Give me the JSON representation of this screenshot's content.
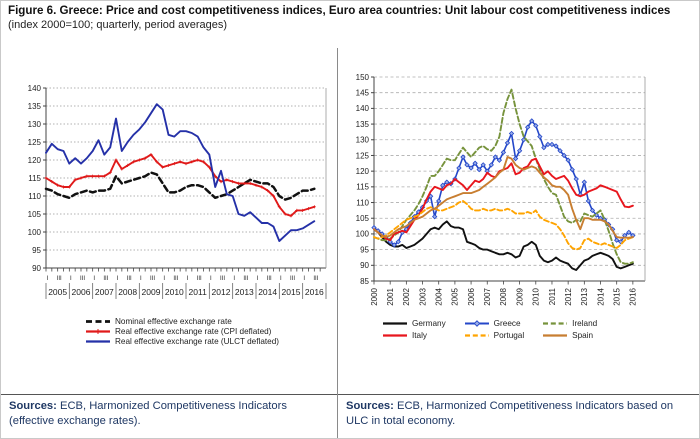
{
  "figure": {
    "title": "Figure 6. Greece: Price and cost competitiveness indices, Euro area countries: Unit labour cost competitiveness indices",
    "subtitle": "(index 2000=100; quarterly, period averages)"
  },
  "left_panel": {
    "sources_label": "Sources:",
    "sources_rest": " ECB, Harmonized Competitiveness Indicators (effective exchange rates)."
  },
  "right_panel": {
    "sources_label": "Sources:",
    "sources_rest": " ECB, Harmonized Competitiveness Indicators based on ULC in total economy."
  },
  "colors": {
    "sources_text": "#1F3864",
    "divider": "#8a8a8a",
    "axis": "#444444",
    "grid_left": "#999999",
    "grid_right": "#aeaeae"
  },
  "chart_data": [
    {
      "type": "line",
      "panel": "left",
      "x_unit": "quarter",
      "x_start": "2005Q1",
      "x_end": "2016Q3",
      "years": [
        2005,
        2006,
        2007,
        2008,
        2009,
        2010,
        2011,
        2012,
        2013,
        2014,
        2015,
        2016
      ],
      "quarter_tick_labels": [
        "I",
        "III"
      ],
      "ylim": [
        90,
        140
      ],
      "ytick_step": 5,
      "grid": "dotted",
      "legend_position": "below-left",
      "series": [
        {
          "name": "Nominal effective exchange rate",
          "color": "#111111",
          "style": "dashed-bold",
          "values": [
            112,
            111.5,
            110.5,
            110,
            109.5,
            110.5,
            111,
            111.5,
            111,
            111.5,
            111.5,
            112,
            115.5,
            113.5,
            114,
            114.5,
            115,
            115.5,
            116.5,
            116,
            113.5,
            111,
            111,
            111.5,
            112.5,
            113,
            113,
            112.5,
            111,
            109.5,
            110,
            110.5,
            111.5,
            112.5,
            113.5,
            114.5,
            114,
            113.5,
            113.5,
            112.5,
            110,
            109,
            109.5,
            110.5,
            111.5,
            111.5,
            112
          ]
        },
        {
          "name": "Real effective exchange rate (CPI deflated)",
          "color": "#E01A1A",
          "style": "solid-plus",
          "values": [
            115,
            114,
            113,
            112.5,
            112.5,
            114.5,
            115,
            115.5,
            115.5,
            115.5,
            115.5,
            116.5,
            120,
            117.5,
            118.5,
            119.5,
            120,
            120.5,
            121.5,
            119.5,
            118,
            118.5,
            119,
            119.5,
            119,
            119.5,
            120,
            119.5,
            118,
            115.5,
            114,
            114.5,
            114,
            113.5,
            113.5,
            113.5,
            113,
            112.5,
            111.5,
            110,
            107,
            105,
            104.5,
            106,
            106,
            106.5,
            107
          ]
        },
        {
          "name": "Real effective exchange rate (ULCT deflated)",
          "color": "#2531A8",
          "style": "solid",
          "values": [
            122,
            124.5,
            123,
            122.5,
            119,
            120.5,
            119,
            120.5,
            122.5,
            125.5,
            121.5,
            123.5,
            131.5,
            122.5,
            125,
            127,
            128.5,
            130.5,
            133,
            135.5,
            134,
            127,
            126.5,
            128,
            128,
            127.5,
            126.5,
            123.5,
            121.5,
            112.5,
            117,
            110.5,
            110,
            105,
            104.5,
            105.5,
            104,
            102.5,
            102.5,
            101.5,
            97.5,
            99,
            100.5,
            100.5,
            101,
            102,
            103
          ]
        }
      ]
    },
    {
      "type": "line",
      "panel": "right",
      "x_unit": "quarter",
      "x_start": "2000Q1",
      "x_end": "2016Q1",
      "years": [
        2000,
        2001,
        2002,
        2003,
        2004,
        2005,
        2006,
        2007,
        2008,
        2009,
        2010,
        2011,
        2012,
        2013,
        2014,
        2015,
        2016
      ],
      "ylim": [
        85,
        150
      ],
      "ytick_step": 5,
      "grid": "dashed",
      "legend_position": "below-center",
      "series": [
        {
          "name": "Germany",
          "color": "#111111",
          "style": "solid",
          "values": [
            101.5,
            100.5,
            99,
            97.5,
            96.5,
            96,
            96,
            96.5,
            95.5,
            96,
            96.5,
            97.5,
            98.5,
            100,
            101.5,
            102,
            101.5,
            103,
            104,
            102.5,
            102,
            102,
            101.5,
            97.5,
            97,
            96.5,
            95.5,
            95,
            95,
            94.5,
            94,
            93.5,
            93.5,
            94,
            93.5,
            92.5,
            93,
            96,
            96.5,
            97.5,
            96.5,
            93,
            91.5,
            91,
            91.5,
            92.5,
            91.5,
            91,
            90.5,
            89,
            88.5,
            90,
            91.5,
            92,
            93,
            93.5,
            94,
            93.5,
            93,
            92,
            89.5,
            89,
            89.5,
            90,
            90.5
          ]
        },
        {
          "name": "Greece",
          "color": "#2447C9",
          "style": "solid-diamond",
          "marker_fill": "#9AAEE8",
          "values": [
            102,
            101,
            100,
            99,
            97.5,
            96.5,
            97.5,
            100.5,
            101.5,
            103.5,
            105.5,
            107,
            108.5,
            110.5,
            112,
            105.5,
            110.5,
            115.5,
            116.5,
            116,
            117.5,
            121,
            124.5,
            122,
            121,
            122.5,
            120.5,
            122,
            120,
            122,
            124.5,
            123.5,
            126,
            129,
            132,
            124,
            126.5,
            130,
            134,
            136,
            134.5,
            131,
            127.5,
            128.5,
            128.5,
            128,
            126.5,
            125,
            123.5,
            120.5,
            117.5,
            112.5,
            116.5,
            110.5,
            107.5,
            106,
            105,
            104.5,
            103,
            101.5,
            98,
            97.5,
            99.5,
            100.5,
            99.5
          ]
        },
        {
          "name": "Ireland",
          "color": "#77933C",
          "style": "dashed",
          "values": [
            99,
            98.5,
            98,
            98,
            98.5,
            99.5,
            100.5,
            102.5,
            104.5,
            106,
            107.5,
            109.5,
            112,
            115,
            118.5,
            118.5,
            120,
            122,
            124,
            123.5,
            123.5,
            125.5,
            127.5,
            126,
            124.5,
            126,
            127.5,
            128,
            127,
            126.5,
            128,
            131,
            138.5,
            143,
            146,
            140,
            135,
            131,
            129.5,
            128,
            124,
            120.5,
            117.5,
            115,
            113,
            112.5,
            109,
            105.5,
            104,
            103.5,
            104.5,
            104,
            106.5,
            106,
            105.5,
            106.5,
            107.5,
            104.5,
            101,
            97,
            93.5,
            91,
            90.5,
            90.5,
            91
          ]
        },
        {
          "name": "Italy",
          "color": "#E8161D",
          "style": "solid",
          "values": [
            101.5,
            100.5,
            99.5,
            98.5,
            98,
            100,
            100.5,
            101,
            100.5,
            102.5,
            104.5,
            106,
            108,
            111,
            113.5,
            115,
            114.5,
            114,
            115.5,
            116,
            117.5,
            116.5,
            115.5,
            114,
            115.5,
            117,
            116.5,
            117.5,
            119.5,
            118.5,
            118,
            120,
            120.5,
            121,
            122.5,
            119,
            119.5,
            121,
            121.5,
            123.5,
            124,
            121.5,
            119,
            120,
            118.5,
            117.5,
            118,
            118.5,
            117,
            114.5,
            112.5,
            112,
            112.5,
            113.5,
            114,
            114.5,
            115.5,
            115,
            114.5,
            114,
            113.5,
            111,
            108.7,
            108.5,
            109
          ]
        },
        {
          "name": "Portugal",
          "color": "#FFA400",
          "style": "dashed",
          "values": [
            99,
            98.5,
            99,
            99.5,
            100.5,
            101.5,
            102.5,
            103.5,
            104.5,
            105,
            105.5,
            106,
            107,
            108,
            108.5,
            108,
            107.5,
            107.5,
            108,
            108.5,
            109,
            110,
            110.5,
            109.5,
            108,
            107.5,
            107.5,
            108,
            107.5,
            107.5,
            108,
            107.5,
            107.5,
            108,
            107.5,
            106.5,
            106.5,
            106.5,
            107,
            106.5,
            107.5,
            105.5,
            104.5,
            104,
            103.5,
            103,
            101.5,
            99.5,
            97,
            95.5,
            95,
            95.5,
            98,
            98.5,
            97.5,
            97,
            96.5,
            97,
            96.5,
            96,
            95.5,
            96.5,
            98,
            98.5,
            99
          ]
        },
        {
          "name": "Spain",
          "color": "#C87E31",
          "style": "solid",
          "values": [
            101.5,
            100.5,
            99.5,
            99,
            99.5,
            100.5,
            101.5,
            102,
            102.5,
            103.5,
            104.5,
            105,
            105.5,
            106.5,
            107.5,
            108,
            109,
            110,
            111,
            111.5,
            112,
            112.5,
            113,
            113,
            113,
            113.5,
            114,
            115,
            116,
            117,
            118,
            119.5,
            120.5,
            124.5,
            124,
            122,
            121,
            120.5,
            121,
            121.5,
            121,
            119.5,
            118,
            117,
            115.5,
            115,
            115,
            114,
            112.5,
            108,
            104.5,
            101.5,
            105,
            105,
            104.5,
            104.5,
            104.5,
            104,
            103,
            101,
            99,
            98.8,
            98.8,
            98.8,
            99
          ]
        }
      ]
    }
  ]
}
